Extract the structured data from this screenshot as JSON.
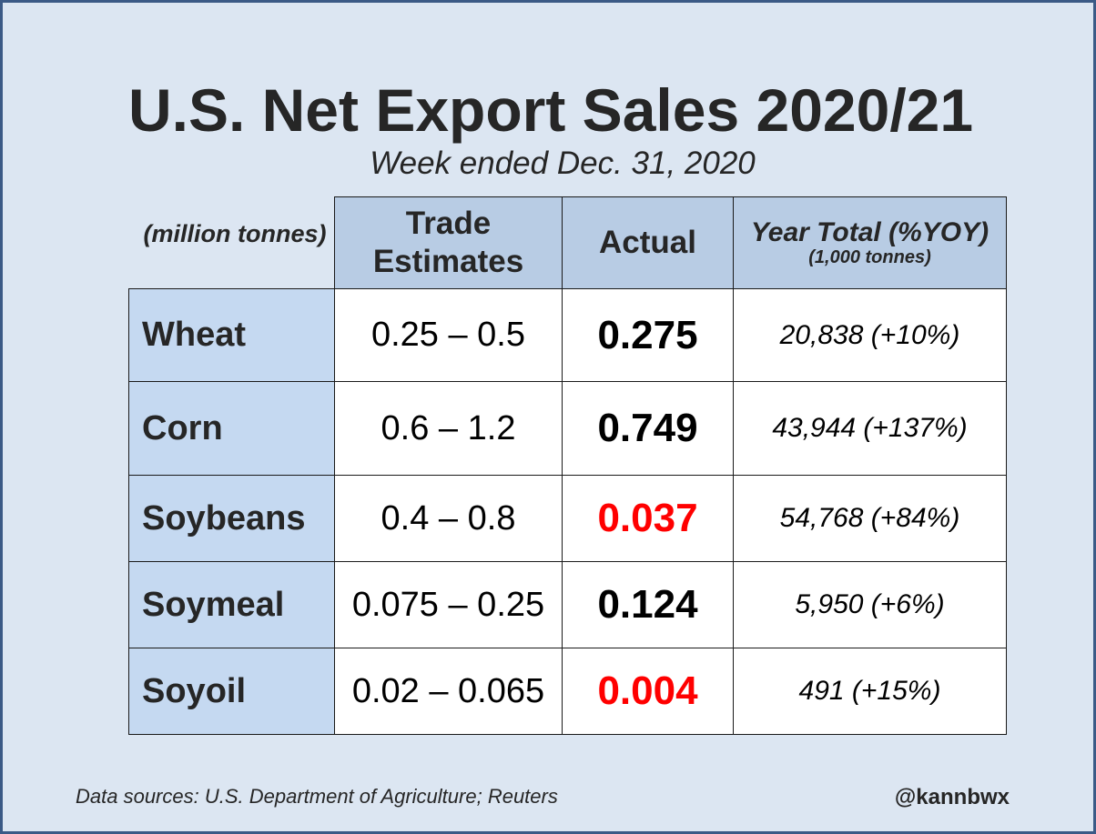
{
  "title": "U.S. Net Export Sales 2020/21",
  "subtitle": "Week ended Dec. 31, 2020",
  "units_label": "(million tonnes)",
  "headers": {
    "trade_estimates": "Trade Estimates",
    "actual": "Actual",
    "year_total": "Year Total (%YOY)",
    "year_total_sub": "(1,000 tonnes)"
  },
  "colors": {
    "background": "#dce6f2",
    "header_fill": "#b8cce4",
    "row_label_fill": "#c5d9f1",
    "below_estimate": "#ff0000"
  },
  "chart_data": {
    "type": "table",
    "title": "U.S. Net Export Sales 2020/21",
    "subtitle": "Week ended Dec. 31, 2020",
    "columns": [
      "Trade Estimates",
      "Actual",
      "Year Total (%YOY)"
    ],
    "rows": [
      {
        "commodity": "Wheat",
        "trade_estimates": "0.25 – 0.5",
        "actual": "0.275",
        "below_estimates": false,
        "year_total": "20,838 (+10%)"
      },
      {
        "commodity": "Corn",
        "trade_estimates": "0.6 – 1.2",
        "actual": "0.749",
        "below_estimates": false,
        "year_total": "43,944 (+137%)"
      },
      {
        "commodity": "Soybeans",
        "trade_estimates": "0.4 – 0.8",
        "actual": "0.037",
        "below_estimates": true,
        "year_total": "54,768 (+84%)"
      },
      {
        "commodity": "Soymeal",
        "trade_estimates": "0.075 – 0.25",
        "actual": "0.124",
        "below_estimates": false,
        "year_total": "5,950 (+6%)"
      },
      {
        "commodity": "Soyoil",
        "trade_estimates": "0.02 – 0.065",
        "actual": "0.004",
        "below_estimates": true,
        "year_total": "491 (+15%)"
      }
    ]
  },
  "footer": {
    "source": "Data sources: U.S. Department of Agriculture; Reuters",
    "handle": "@kannbwx"
  }
}
